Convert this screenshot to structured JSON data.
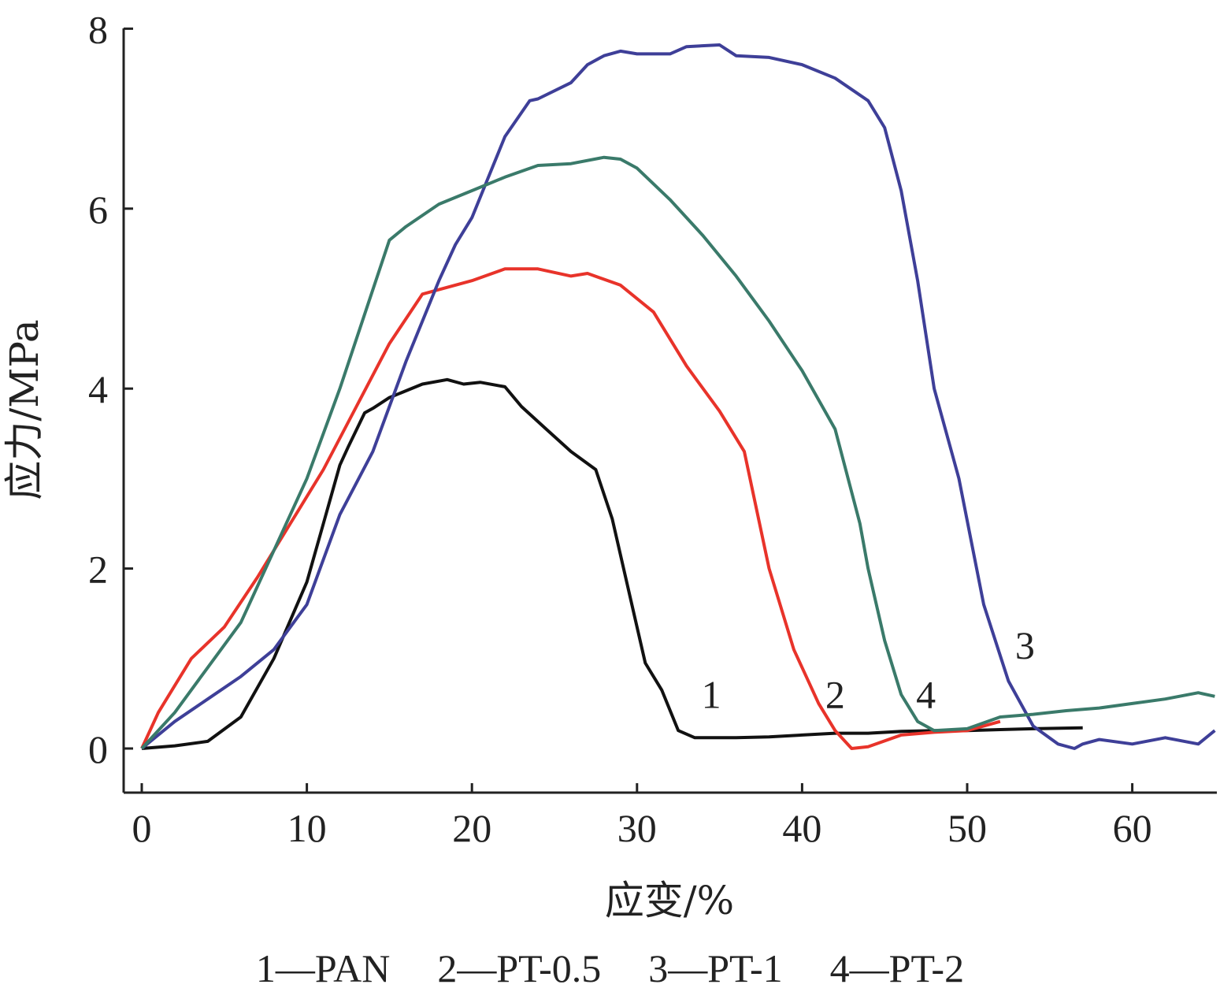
{
  "chart_data": {
    "type": "line",
    "xlabel": "应变/%",
    "ylabel": "应力/MPa",
    "xlim": [
      -1,
      65
    ],
    "ylim": [
      -0.5,
      8
    ],
    "xticks": [
      "0",
      "10",
      "20",
      "30",
      "40",
      "50",
      "60"
    ],
    "yticks": [
      "0",
      "2",
      "4",
      "6",
      "8"
    ],
    "legend_position": "bottom",
    "legend": [
      "1—PAN",
      "2—PT-0.5",
      "3—PT-1",
      "4—PT-2"
    ],
    "series": [
      {
        "name": "PAN",
        "label": "1",
        "color": "#111111",
        "label_at": [
          34.5,
          0.45
        ],
        "x": [
          0,
          2,
          4,
          6,
          8,
          10,
          11,
          12,
          12.5,
          13.5,
          14,
          15,
          17,
          18.5,
          19.5,
          20.5,
          22,
          23,
          24.5,
          26,
          27.5,
          28.5,
          29.5,
          30.5,
          31.5,
          32.5,
          33.5,
          36,
          38,
          40,
          42,
          44,
          46,
          48,
          50,
          52,
          54,
          57
        ],
        "y": [
          0,
          0.03,
          0.08,
          0.35,
          1.0,
          1.85,
          2.5,
          3.15,
          3.35,
          3.73,
          3.78,
          3.9,
          4.05,
          4.1,
          4.05,
          4.07,
          4.02,
          3.8,
          3.55,
          3.3,
          3.1,
          2.55,
          1.75,
          0.95,
          0.65,
          0.2,
          0.12,
          0.12,
          0.13,
          0.15,
          0.17,
          0.17,
          0.19,
          0.2,
          0.2,
          0.21,
          0.22,
          0.23
        ]
      },
      {
        "name": "PT-0.5",
        "label": "2",
        "color": "#e8332a",
        "label_at": [
          42,
          0.45
        ],
        "x": [
          0,
          1,
          3,
          5,
          7,
          9,
          11,
          13,
          15,
          17,
          18,
          20,
          22,
          24,
          26,
          27,
          29,
          31,
          33,
          35,
          36.5,
          38,
          39.5,
          41,
          42,
          43,
          44,
          46,
          48,
          50,
          52
        ],
        "y": [
          0,
          0.4,
          1.0,
          1.35,
          1.9,
          2.5,
          3.1,
          3.8,
          4.5,
          5.05,
          5.1,
          5.2,
          5.33,
          5.33,
          5.25,
          5.28,
          5.15,
          4.85,
          4.25,
          3.75,
          3.3,
          2.0,
          1.1,
          0.5,
          0.2,
          0.0,
          0.02,
          0.15,
          0.18,
          0.2,
          0.3
        ]
      },
      {
        "name": "PT-1",
        "label": "3",
        "color": "#3e3f98",
        "label_at": [
          53.5,
          1.0
        ],
        "x": [
          0,
          2,
          4,
          6,
          8,
          10,
          12,
          14,
          16,
          18,
          19,
          20,
          22,
          23.5,
          24,
          26,
          27,
          28,
          29,
          30,
          32,
          33,
          35,
          36,
          38,
          40,
          42,
          44,
          45,
          46,
          47,
          48,
          49.5,
          51,
          52.5,
          54,
          55.5,
          56.5,
          57,
          58,
          60,
          62,
          64,
          65
        ],
        "y": [
          0,
          0.3,
          0.55,
          0.8,
          1.1,
          1.6,
          2.6,
          3.3,
          4.3,
          5.2,
          5.6,
          5.9,
          6.8,
          7.2,
          7.22,
          7.4,
          7.6,
          7.7,
          7.75,
          7.72,
          7.72,
          7.8,
          7.82,
          7.7,
          7.68,
          7.6,
          7.45,
          7.2,
          6.9,
          6.2,
          5.2,
          4.0,
          3.0,
          1.6,
          0.75,
          0.25,
          0.05,
          0.0,
          0.05,
          0.1,
          0.05,
          0.12,
          0.05,
          0.2
        ]
      },
      {
        "name": "PT-2",
        "label": "4",
        "color": "#3a7a6a",
        "label_at": [
          47.5,
          0.45
        ],
        "x": [
          0,
          2,
          4,
          6,
          8,
          10,
          12,
          14,
          15,
          16,
          18,
          20,
          22,
          24,
          26,
          28,
          29,
          30,
          32,
          34,
          36,
          38,
          40,
          42,
          43.5,
          44,
          45,
          46,
          47,
          48,
          50,
          52,
          54,
          56,
          58,
          60,
          62,
          64,
          65
        ],
        "y": [
          0,
          0.4,
          0.9,
          1.4,
          2.2,
          3.0,
          4.0,
          5.1,
          5.65,
          5.8,
          6.05,
          6.2,
          6.35,
          6.48,
          6.5,
          6.57,
          6.55,
          6.45,
          6.1,
          5.7,
          5.25,
          4.75,
          4.2,
          3.55,
          2.5,
          2.0,
          1.2,
          0.6,
          0.3,
          0.2,
          0.22,
          0.35,
          0.38,
          0.42,
          0.45,
          0.5,
          0.55,
          0.62,
          0.58
        ]
      }
    ]
  }
}
